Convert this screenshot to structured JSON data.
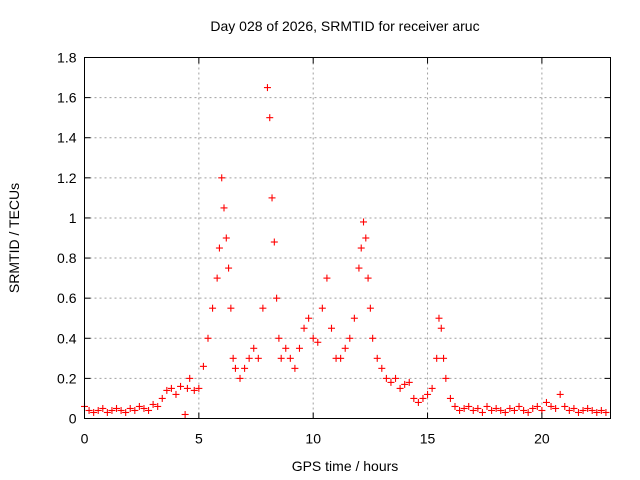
{
  "chart_data": {
    "type": "scatter",
    "title": "Day 028 of 2026, SRMTID for receiver aruc",
    "xlabel": "GPS time / hours",
    "ylabel": "SRMTID / TECUs",
    "xlim": [
      0,
      23
    ],
    "ylim": [
      0,
      1.8
    ],
    "xticks": [
      0,
      5,
      10,
      15,
      20
    ],
    "xtick_labels": [
      "0",
      "5",
      "10",
      "15",
      "20"
    ],
    "yticks": [
      0,
      0.2,
      0.4,
      0.6,
      0.8,
      1.0,
      1.2,
      1.4,
      1.6,
      1.8
    ],
    "ytick_labels": [
      "0",
      "0.2",
      "0.4",
      "0.6",
      "0.8",
      "1",
      "1.2",
      "1.4",
      "1.6",
      "1.8"
    ],
    "grid": true,
    "marker": "plus",
    "color": "#ff0000",
    "series": [
      {
        "name": "SRMTID",
        "x": [
          0.0,
          0.2,
          0.4,
          0.6,
          0.8,
          1.0,
          1.2,
          1.4,
          1.6,
          1.8,
          2.0,
          2.2,
          2.4,
          2.6,
          2.8,
          3.0,
          3.2,
          3.4,
          3.6,
          3.8,
          4.0,
          4.2,
          4.4,
          4.5,
          4.6,
          4.8,
          5.0,
          5.2,
          5.4,
          5.6,
          5.8,
          5.9,
          6.0,
          6.1,
          6.2,
          6.3,
          6.4,
          6.5,
          6.6,
          6.8,
          7.0,
          7.2,
          7.4,
          7.6,
          7.8,
          8.0,
          8.1,
          8.2,
          8.3,
          8.4,
          8.5,
          8.6,
          8.8,
          9.0,
          9.2,
          9.4,
          9.6,
          9.8,
          10.0,
          10.2,
          10.4,
          10.6,
          10.8,
          11.0,
          11.2,
          11.4,
          11.6,
          11.8,
          12.0,
          12.1,
          12.2,
          12.3,
          12.4,
          12.5,
          12.6,
          12.8,
          13.0,
          13.2,
          13.4,
          13.6,
          13.8,
          14.0,
          14.2,
          14.4,
          14.6,
          14.8,
          15.0,
          15.2,
          15.4,
          15.5,
          15.6,
          15.7,
          15.8,
          16.0,
          16.2,
          16.4,
          16.6,
          16.8,
          17.0,
          17.2,
          17.4,
          17.6,
          17.8,
          18.0,
          18.2,
          18.4,
          18.6,
          18.8,
          19.0,
          19.2,
          19.4,
          19.6,
          19.8,
          20.0,
          20.2,
          20.4,
          20.6,
          20.8,
          21.0,
          21.2,
          21.4,
          21.6,
          21.8,
          22.0,
          22.2,
          22.4,
          22.6,
          22.8
        ],
        "y": [
          0.06,
          0.04,
          0.03,
          0.04,
          0.05,
          0.03,
          0.04,
          0.05,
          0.04,
          0.03,
          0.05,
          0.04,
          0.06,
          0.05,
          0.04,
          0.07,
          0.06,
          0.1,
          0.14,
          0.15,
          0.12,
          0.16,
          0.02,
          0.15,
          0.2,
          0.14,
          0.15,
          0.26,
          0.4,
          0.55,
          0.7,
          0.85,
          1.2,
          1.05,
          0.9,
          0.75,
          0.55,
          0.3,
          0.25,
          0.2,
          0.25,
          0.3,
          0.35,
          0.3,
          0.55,
          1.65,
          1.5,
          1.1,
          0.88,
          0.6,
          0.4,
          0.3,
          0.35,
          0.3,
          0.25,
          0.35,
          0.45,
          0.5,
          0.4,
          0.38,
          0.55,
          0.7,
          0.45,
          0.3,
          0.3,
          0.35,
          0.4,
          0.5,
          0.75,
          0.85,
          0.98,
          0.9,
          0.7,
          0.55,
          0.4,
          0.3,
          0.25,
          0.2,
          0.18,
          0.2,
          0.15,
          0.17,
          0.18,
          0.1,
          0.08,
          0.1,
          0.12,
          0.15,
          0.3,
          0.5,
          0.45,
          0.3,
          0.2,
          0.1,
          0.06,
          0.04,
          0.05,
          0.06,
          0.04,
          0.05,
          0.03,
          0.06,
          0.04,
          0.05,
          0.04,
          0.03,
          0.05,
          0.04,
          0.06,
          0.04,
          0.03,
          0.05,
          0.06,
          0.04,
          0.08,
          0.06,
          0.05,
          0.12,
          0.06,
          0.04,
          0.05,
          0.03,
          0.04,
          0.05,
          0.04,
          0.03,
          0.04,
          0.03
        ]
      }
    ]
  }
}
